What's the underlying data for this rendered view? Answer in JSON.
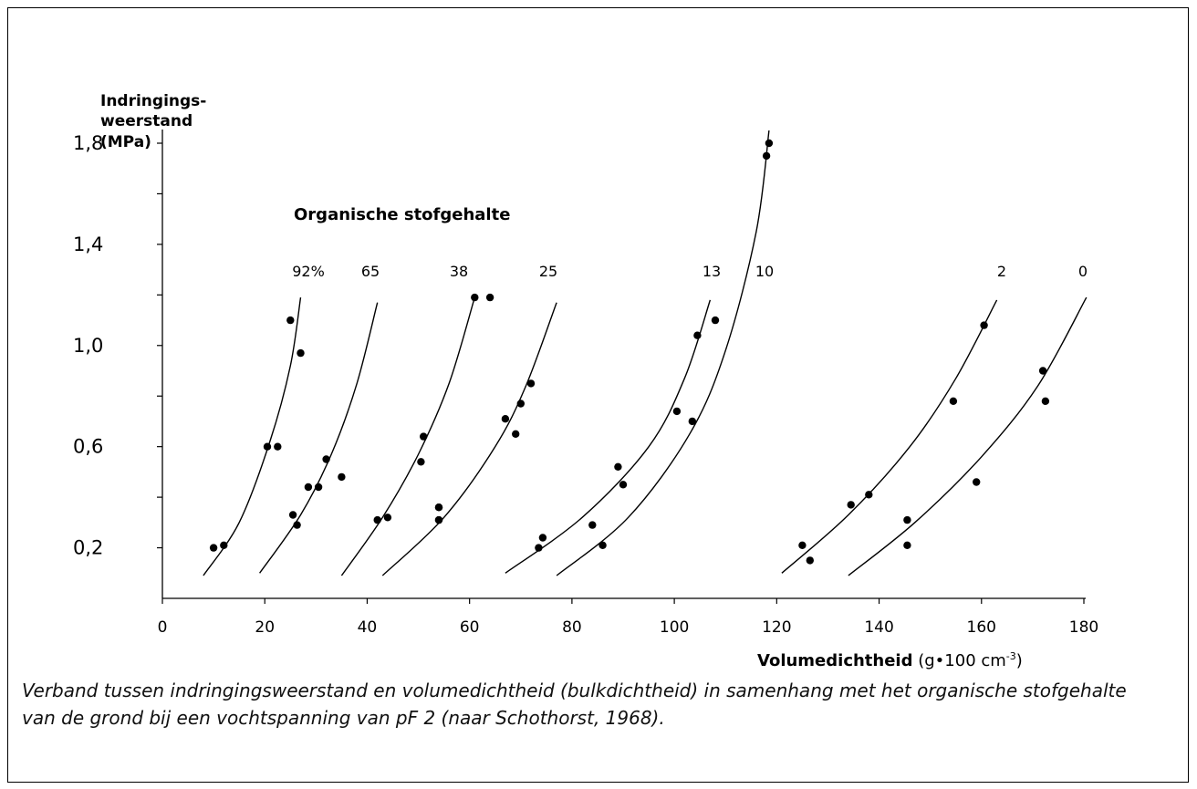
{
  "chart_data": {
    "type": "scatter",
    "ylabel_lines": [
      "Indringings-",
      "weerstand",
      "(MPa)"
    ],
    "xlabel_bold": "Volumedichtheid",
    "xlabel_unit_pre": "(g•100 cm",
    "xlabel_unit_exp": "-3",
    "xlabel_unit_post": ")",
    "annotation": "Organische stofgehalte",
    "xlim": [
      0,
      180
    ],
    "ylim": [
      0,
      1.8
    ],
    "x_ticks": [
      "0",
      "20",
      "40",
      "60",
      "80",
      "100",
      "120",
      "140",
      "160",
      "180"
    ],
    "y_ticks": [
      "0,2",
      "0,6",
      "1,0",
      "1,4",
      "1,8"
    ],
    "grid": false,
    "series": [
      {
        "name": "92%",
        "curve": [
          [
            8,
            0.09
          ],
          [
            15,
            0.3
          ],
          [
            21,
            0.62
          ],
          [
            25,
            0.92
          ],
          [
            27,
            1.19
          ]
        ],
        "points": [
          [
            10,
            0.2
          ],
          [
            12,
            0.21
          ],
          [
            20.5,
            0.6
          ],
          [
            22.5,
            0.6
          ],
          [
            25,
            1.1
          ],
          [
            27,
            0.97
          ]
        ]
      },
      {
        "name": "65",
        "curve": [
          [
            19,
            0.1
          ],
          [
            27,
            0.33
          ],
          [
            33,
            0.57
          ],
          [
            38,
            0.85
          ],
          [
            42,
            1.17
          ]
        ],
        "points": [
          [
            25.5,
            0.33
          ],
          [
            26.3,
            0.29
          ],
          [
            28.5,
            0.44
          ],
          [
            30.5,
            0.44
          ],
          [
            32,
            0.55
          ],
          [
            35,
            0.48
          ]
        ]
      },
      {
        "name": "38",
        "curve": [
          [
            35,
            0.09
          ],
          [
            43,
            0.32
          ],
          [
            50,
            0.57
          ],
          [
            56,
            0.85
          ],
          [
            61,
            1.19
          ]
        ],
        "points": [
          [
            42,
            0.31
          ],
          [
            44,
            0.32
          ],
          [
            50.5,
            0.54
          ],
          [
            51,
            0.64
          ],
          [
            54,
            0.36
          ],
          [
            54,
            0.31
          ],
          [
            61,
            1.19
          ],
          [
            64,
            1.19
          ]
        ]
      },
      {
        "name": "25",
        "curve": [
          [
            43,
            0.09
          ],
          [
            55,
            0.32
          ],
          [
            65,
            0.6
          ],
          [
            71,
            0.84
          ],
          [
            77,
            1.17
          ]
        ],
        "points": [
          [
            54,
            0.36
          ],
          [
            54,
            0.31
          ],
          [
            67,
            0.71
          ],
          [
            69,
            0.65
          ],
          [
            70,
            0.77
          ],
          [
            72,
            0.85
          ],
          [
            73.5,
            0.2
          ],
          [
            74.3,
            0.24
          ]
        ]
      },
      {
        "name": "13",
        "curve": [
          [
            67,
            0.1
          ],
          [
            82,
            0.32
          ],
          [
            95,
            0.6
          ],
          [
            102,
            0.87
          ],
          [
            107,
            1.18
          ]
        ],
        "points": [
          [
            84,
            0.29
          ],
          [
            89,
            0.52
          ],
          [
            90,
            0.45
          ],
          [
            100.5,
            0.74
          ],
          [
            104.5,
            1.04
          ]
        ]
      },
      {
        "name": "10",
        "curve": [
          [
            77,
            0.09
          ],
          [
            91,
            0.32
          ],
          [
            103,
            0.65
          ],
          [
            110,
            0.98
          ],
          [
            116,
            1.45
          ],
          [
            118.5,
            1.85
          ]
        ],
        "points": [
          [
            86,
            0.21
          ],
          [
            103.5,
            0.7
          ],
          [
            108,
            1.1
          ],
          [
            118,
            1.75
          ],
          [
            118.5,
            1.8
          ]
        ]
      },
      {
        "name": "2",
        "curve": [
          [
            121,
            0.1
          ],
          [
            134,
            0.33
          ],
          [
            146,
            0.6
          ],
          [
            155,
            0.87
          ],
          [
            163,
            1.18
          ]
        ],
        "points": [
          [
            125,
            0.21
          ],
          [
            126.5,
            0.15
          ],
          [
            134.5,
            0.37
          ],
          [
            138,
            0.41
          ],
          [
            154.5,
            0.78
          ],
          [
            160.5,
            1.08
          ]
        ]
      },
      {
        "name": "0",
        "curve": [
          [
            134,
            0.09
          ],
          [
            147,
            0.3
          ],
          [
            160,
            0.56
          ],
          [
            171,
            0.84
          ],
          [
            180.5,
            1.19
          ]
        ],
        "points": [
          [
            145.5,
            0.21
          ],
          [
            145.5,
            0.31
          ],
          [
            159,
            0.46
          ],
          [
            172,
            0.9
          ],
          [
            172.5,
            0.78
          ]
        ]
      }
    ]
  },
  "caption": "Verband tussen indringingsweerstand en volumedichtheid (bulkdichtheid) in samenhang met het organische stofgehalte van de grond bij een vochtspanning van pF 2 (naar Schothorst, 1968)."
}
